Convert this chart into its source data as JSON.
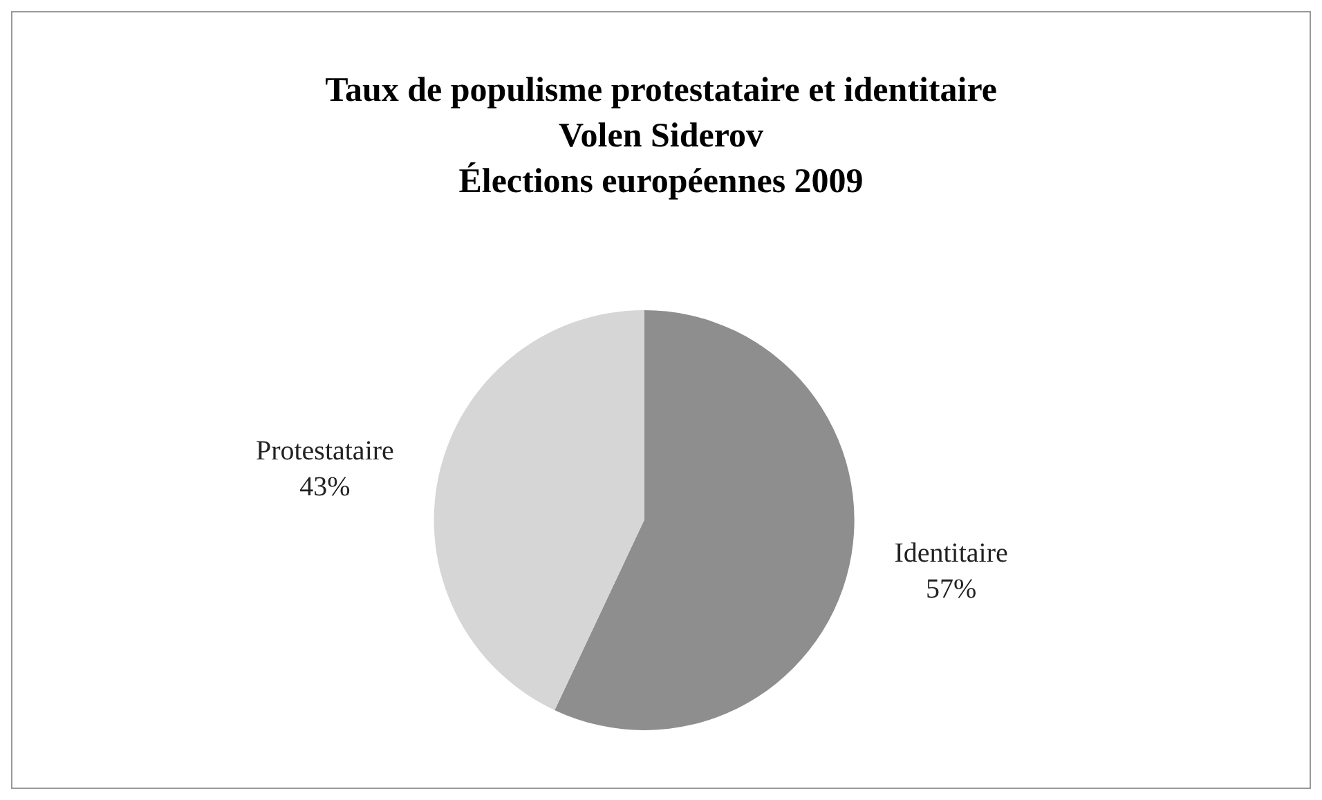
{
  "chart_data": {
    "type": "pie",
    "title": "Taux de populisme protestataire et identitaire\nVolen Siderov\nÉlections européennes 2009",
    "categories": [
      "Identitaire",
      "Protestataire"
    ],
    "values": [
      57,
      43
    ],
    "colors": [
      "#8e8e8e",
      "#d6d6d6"
    ],
    "value_labels": [
      "57%",
      "43%"
    ],
    "legend": false
  }
}
